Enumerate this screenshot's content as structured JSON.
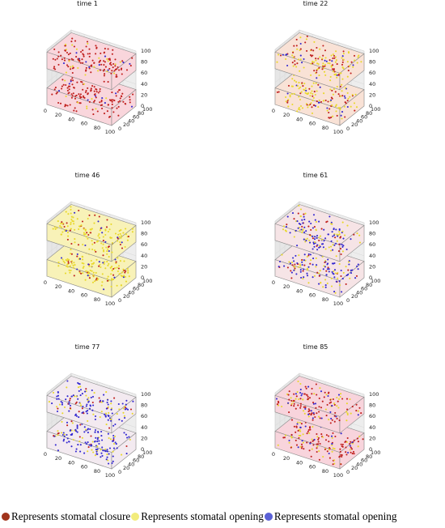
{
  "chart_data": [
    {
      "type": "scatter3d",
      "title": "time 1",
      "x_ticks": [
        "0",
        "20",
        "40",
        "60",
        "80",
        "100"
      ],
      "y_ticks": [
        "0",
        "20",
        "40",
        "60",
        "80",
        "100"
      ],
      "z_ticks": [
        "0",
        "20",
        "40",
        "60",
        "80",
        "100"
      ],
      "xlim": [
        0,
        100
      ],
      "ylim": [
        0,
        100
      ],
      "zlim": [
        0,
        100
      ],
      "layers": [
        {
          "zmin": 0,
          "zmax": 30
        },
        {
          "zmin": 65,
          "zmax": 95
        }
      ],
      "composition": {
        "closure": 0.82,
        "opening_yellow": 0.12,
        "opening_blue": 0.06
      },
      "background": "#f9d6dc"
    },
    {
      "type": "scatter3d",
      "title": "time 22",
      "x_ticks": [
        "0",
        "20",
        "40",
        "60",
        "80",
        "100"
      ],
      "y_ticks": [
        "0",
        "20",
        "40",
        "60",
        "80",
        "100"
      ],
      "z_ticks": [
        "0",
        "20",
        "40",
        "60",
        "80",
        "100"
      ],
      "xlim": [
        0,
        100
      ],
      "ylim": [
        0,
        100
      ],
      "zlim": [
        0,
        100
      ],
      "layers": [
        {
          "zmin": 0,
          "zmax": 30
        },
        {
          "zmin": 65,
          "zmax": 95
        }
      ],
      "composition": {
        "closure": 0.35,
        "opening_yellow": 0.55,
        "opening_blue": 0.1
      },
      "background": "#f9e2d6"
    },
    {
      "type": "scatter3d",
      "title": "time 46",
      "x_ticks": [
        "0",
        "20",
        "40",
        "60",
        "80",
        "100"
      ],
      "y_ticks": [
        "0",
        "20",
        "40",
        "60",
        "80",
        "100"
      ],
      "z_ticks": [
        "0",
        "20",
        "40",
        "60",
        "80",
        "100"
      ],
      "xlim": [
        0,
        100
      ],
      "ylim": [
        0,
        100
      ],
      "zlim": [
        0,
        100
      ],
      "layers": [
        {
          "zmin": 0,
          "zmax": 30
        },
        {
          "zmin": 65,
          "zmax": 95
        }
      ],
      "composition": {
        "closure": 0.18,
        "opening_yellow": 0.75,
        "opening_blue": 0.07
      },
      "background": "#f8f2b8"
    },
    {
      "type": "scatter3d",
      "title": "time 61",
      "x_ticks": [
        "0",
        "20",
        "40",
        "60",
        "80",
        "100"
      ],
      "y_ticks": [
        "0",
        "20",
        "40",
        "60",
        "80",
        "100"
      ],
      "z_ticks": [
        "0",
        "20",
        "40",
        "60",
        "80",
        "100"
      ],
      "xlim": [
        0,
        100
      ],
      "ylim": [
        0,
        100
      ],
      "zlim": [
        0,
        100
      ],
      "layers": [
        {
          "zmin": 0,
          "zmax": 30
        },
        {
          "zmin": 65,
          "zmax": 95
        }
      ],
      "composition": {
        "closure": 0.15,
        "opening_yellow": 0.35,
        "opening_blue": 0.5
      },
      "background": "#f6e4e6"
    },
    {
      "type": "scatter3d",
      "title": "time 77",
      "x_ticks": [
        "0",
        "20",
        "40",
        "60",
        "80",
        "100"
      ],
      "y_ticks": [
        "0",
        "20",
        "40",
        "60",
        "80",
        "100"
      ],
      "z_ticks": [
        "0",
        "20",
        "40",
        "60",
        "80",
        "100"
      ],
      "xlim": [
        0,
        100
      ],
      "ylim": [
        0,
        100
      ],
      "zlim": [
        0,
        100
      ],
      "layers": [
        {
          "zmin": 0,
          "zmax": 30
        },
        {
          "zmin": 65,
          "zmax": 95
        }
      ],
      "composition": {
        "closure": 0.1,
        "opening_yellow": 0.25,
        "opening_blue": 0.65
      },
      "background": "#f3eaf0"
    },
    {
      "type": "scatter3d",
      "title": "time 85",
      "x_ticks": [
        "0",
        "20",
        "40",
        "60",
        "80",
        "100"
      ],
      "y_ticks": [
        "0",
        "20",
        "40",
        "60",
        "80",
        "100"
      ],
      "z_ticks": [
        "0",
        "20",
        "40",
        "60",
        "80",
        "100"
      ],
      "xlim": [
        0,
        100
      ],
      "ylim": [
        0,
        100
      ],
      "zlim": [
        0,
        100
      ],
      "layers": [
        {
          "zmin": 0,
          "zmax": 30
        },
        {
          "zmin": 65,
          "zmax": 95
        }
      ],
      "composition": {
        "closure": 0.55,
        "opening_yellow": 0.3,
        "opening_blue": 0.15
      },
      "background": "#f8d4dc"
    }
  ],
  "legend": {
    "items": [
      {
        "label": "Represents stomatal closure",
        "color": "#a0341c"
      },
      {
        "label": "Represents stomatal opening",
        "color": "#f2ec7c"
      },
      {
        "label": "Represents stomatal opening",
        "color": "#5a60d6"
      }
    ]
  },
  "colors": {
    "closure": "#c0201e",
    "opening_yellow": "#e8d82a",
    "opening_blue": "#3328d0"
  }
}
